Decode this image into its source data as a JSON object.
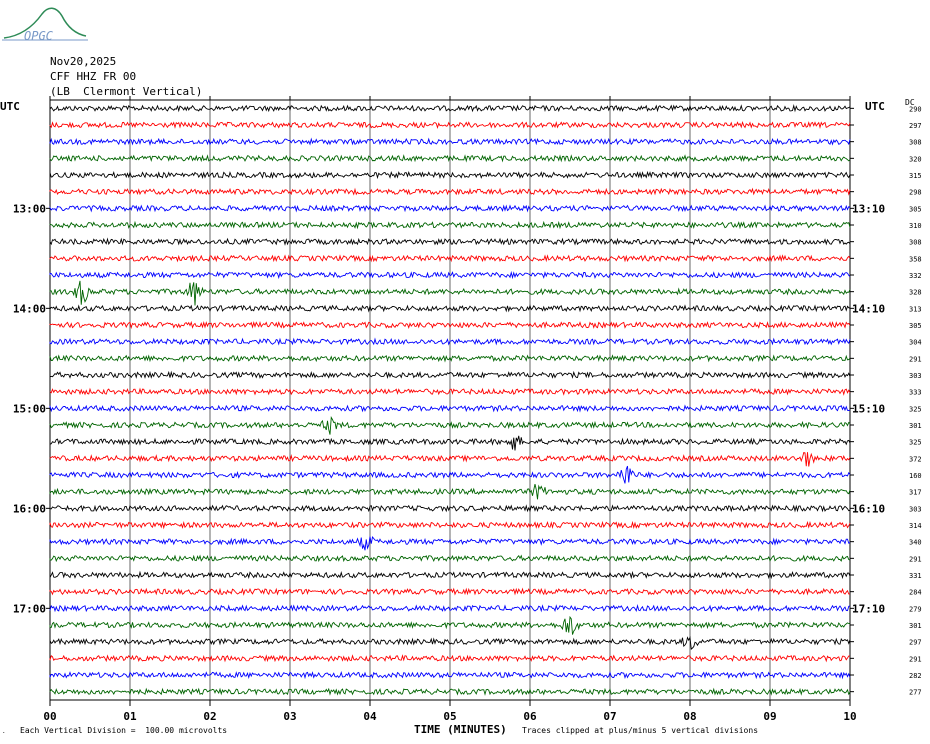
{
  "logo": {
    "text": "OPGC"
  },
  "header": {
    "date": "Nov20,2025",
    "station": "CFF HHZ FR 00",
    "location": "(LB  Clermont Vertical)"
  },
  "left_tz": "UTC",
  "right_tz": "UTC",
  "dc_header": "DC",
  "xlabel": "TIME (MINUTES)",
  "scale_note": "Each Vertical Division =  100.00 microvolts",
  "clip_note": "Traces clipped at plus/minus 5 vertical divisions",
  "colors": {
    "trace_black": "#000000",
    "trace_red": "#ff0000",
    "trace_blue": "#0000ff",
    "trace_green": "#006400",
    "grid": "#000000"
  },
  "chart_data": {
    "type": "line",
    "title": "",
    "xlabel": "TIME (MINUTES)",
    "x_ticks": [
      "00",
      "01",
      "02",
      "03",
      "04",
      "05",
      "06",
      "07",
      "08",
      "09",
      "10"
    ],
    "xlim": [
      0,
      10
    ],
    "left_time_labels": [
      {
        "row": 6,
        "label": "13:00"
      },
      {
        "row": 12,
        "label": "14:00"
      },
      {
        "row": 18,
        "label": "15:00"
      },
      {
        "row": 24,
        "label": "16:00"
      },
      {
        "row": 30,
        "label": "17:00"
      }
    ],
    "right_time_labels": [
      {
        "row": 6,
        "label": "13:10"
      },
      {
        "row": 12,
        "label": "14:10"
      },
      {
        "row": 18,
        "label": "15:10"
      },
      {
        "row": 24,
        "label": "16:10"
      },
      {
        "row": 30,
        "label": "17:10"
      }
    ],
    "color_cycle": [
      "#000000",
      "#ff0000",
      "#0000ff",
      "#006400"
    ],
    "dc_offsets": [
      290,
      297,
      308,
      320,
      315,
      298,
      305,
      310,
      308,
      358,
      332,
      328,
      313,
      305,
      304,
      291,
      303,
      333,
      325,
      301,
      325,
      372,
      160,
      317,
      303,
      314,
      340,
      291,
      331,
      284,
      279,
      301,
      297,
      291,
      282,
      277
    ],
    "events": [
      {
        "row": 11,
        "minute": 0.4,
        "amp": 2.0
      },
      {
        "row": 11,
        "minute": 1.8,
        "amp": 2.2
      },
      {
        "row": 19,
        "minute": 3.5,
        "amp": 1.2
      },
      {
        "row": 20,
        "minute": 5.8,
        "amp": 1.3
      },
      {
        "row": 21,
        "minute": 9.45,
        "amp": 1.3
      },
      {
        "row": 22,
        "minute": 7.2,
        "amp": 2.0
      },
      {
        "row": 23,
        "minute": 6.1,
        "amp": 1.2
      },
      {
        "row": 26,
        "minute": 3.95,
        "amp": 1.2
      },
      {
        "row": 31,
        "minute": 6.5,
        "amp": 2.0
      },
      {
        "row": 32,
        "minute": 8.0,
        "amp": 1.2
      }
    ]
  }
}
